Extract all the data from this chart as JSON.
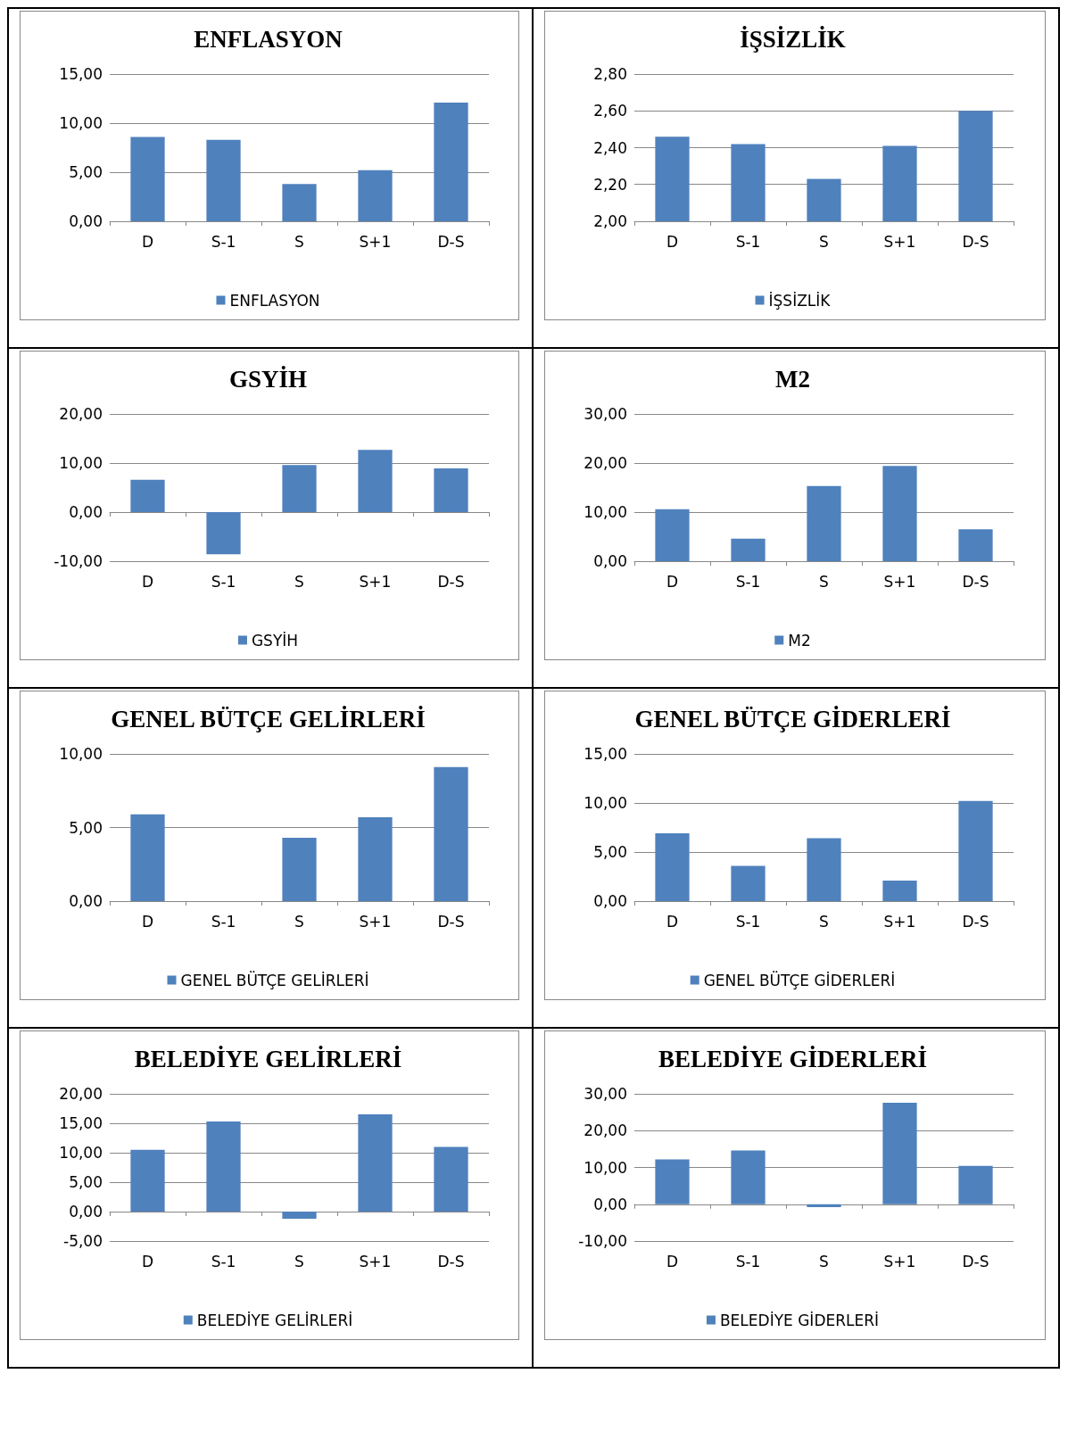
{
  "chart_data": [
    {
      "type": "bar",
      "title": "ENFLASYON",
      "categories": [
        "D",
        "S-1",
        "S",
        "S+1",
        "D-S"
      ],
      "series": [
        {
          "name": "ENFLASYON",
          "color": "#4f81bd",
          "values": [
            8.6,
            8.3,
            3.8,
            5.2,
            12.1
          ]
        }
      ],
      "ylim": [
        0,
        15
      ],
      "yticks": [
        {
          "value": 0,
          "label": "0,00"
        },
        {
          "value": 5,
          "label": "5,00"
        },
        {
          "value": 10,
          "label": "10,00"
        },
        {
          "value": 15,
          "label": "15,00"
        }
      ],
      "grid": "y",
      "legend": "bottom"
    },
    {
      "type": "bar",
      "title": "İŞSİZLİK",
      "categories": [
        "D",
        "S-1",
        "S",
        "S+1",
        "D-S"
      ],
      "series": [
        {
          "name": "İŞSİZLİK",
          "color": "#4f81bd",
          "values": [
            2.46,
            2.42,
            2.23,
            2.41,
            2.6
          ]
        }
      ],
      "ylim": [
        2,
        2.8
      ],
      "yticks": [
        {
          "value": 2,
          "label": "2,00"
        },
        {
          "value": 2.2,
          "label": "2,20"
        },
        {
          "value": 2.4,
          "label": "2,40"
        },
        {
          "value": 2.6,
          "label": "2,60"
        },
        {
          "value": 2.8,
          "label": "2,80"
        }
      ],
      "grid": "y",
      "legend": "bottom"
    },
    {
      "type": "bar",
      "title": "GSYİH",
      "categories": [
        "D",
        "S-1",
        "S",
        "S+1",
        "D-S"
      ],
      "series": [
        {
          "name": "GSYİH",
          "color": "#4f81bd",
          "values": [
            6.6,
            -8.6,
            9.6,
            12.7,
            8.9
          ]
        }
      ],
      "ylim": [
        -10,
        20
      ],
      "yticks": [
        {
          "value": -10,
          "label": "-10,00"
        },
        {
          "value": 0,
          "label": "0,00"
        },
        {
          "value": 10,
          "label": "10,00"
        },
        {
          "value": 20,
          "label": "20,00"
        }
      ],
      "grid": "y",
      "legend": "bottom"
    },
    {
      "type": "bar",
      "title": "M2",
      "categories": [
        "D",
        "S-1",
        "S",
        "S+1",
        "D-S"
      ],
      "series": [
        {
          "name": "M2",
          "color": "#4f81bd",
          "values": [
            10.6,
            4.6,
            15.3,
            19.4,
            6.5
          ]
        }
      ],
      "ylim": [
        0,
        30
      ],
      "yticks": [
        {
          "value": 0,
          "label": "0,00"
        },
        {
          "value": 10,
          "label": "10,00"
        },
        {
          "value": 20,
          "label": "20,00"
        },
        {
          "value": 30,
          "label": "30,00"
        }
      ],
      "grid": "y",
      "legend": "bottom"
    },
    {
      "type": "bar",
      "title": "GENEL BÜTÇE GELİRLERİ",
      "categories": [
        "D",
        "S-1",
        "S",
        "S+1",
        "D-S"
      ],
      "series": [
        {
          "name": "GENEL BÜTÇE GELİRLERİ",
          "color": "#4f81bd",
          "values": [
            5.9,
            0,
            4.3,
            5.7,
            9.1
          ]
        }
      ],
      "ylim": [
        0,
        10
      ],
      "yticks": [
        {
          "value": 0,
          "label": "0,00"
        },
        {
          "value": 5,
          "label": "5,00"
        },
        {
          "value": 10,
          "label": "10,00"
        }
      ],
      "grid": "y",
      "legend": "bottom"
    },
    {
      "type": "bar",
      "title": "GENEL BÜTÇE GİDERLERİ",
      "categories": [
        "D",
        "S-1",
        "S",
        "S+1",
        "D-S"
      ],
      "series": [
        {
          "name": "GENEL BÜTÇE GİDERLERİ",
          "color": "#4f81bd",
          "values": [
            6.9,
            3.6,
            6.4,
            2.1,
            10.2
          ]
        }
      ],
      "ylim": [
        0,
        15
      ],
      "yticks": [
        {
          "value": 0,
          "label": "0,00"
        },
        {
          "value": 5,
          "label": "5,00"
        },
        {
          "value": 10,
          "label": "10,00"
        },
        {
          "value": 15,
          "label": "15,00"
        }
      ],
      "grid": "y",
      "legend": "bottom"
    },
    {
      "type": "bar",
      "title": "BELEDİYE GELİRLERİ",
      "categories": [
        "D",
        "S-1",
        "S",
        "S+1",
        "D-S"
      ],
      "series": [
        {
          "name": "BELEDİYE GELİRLERİ",
          "color": "#4f81bd",
          "values": [
            10.5,
            15.3,
            -1.2,
            16.5,
            11.0
          ]
        }
      ],
      "ylim": [
        -5,
        20
      ],
      "yticks": [
        {
          "value": -5,
          "label": "-5,00"
        },
        {
          "value": 0,
          "label": "0,00"
        },
        {
          "value": 5,
          "label": "5,00"
        },
        {
          "value": 10,
          "label": "10,00"
        },
        {
          "value": 15,
          "label": "15,00"
        },
        {
          "value": 20,
          "label": "20,00"
        }
      ],
      "grid": "y",
      "legend": "bottom"
    },
    {
      "type": "bar",
      "title": "BELEDİYE GİDERLERİ",
      "categories": [
        "D",
        "S-1",
        "S",
        "S+1",
        "D-S"
      ],
      "series": [
        {
          "name": "BELEDİYE GİDERLERİ",
          "color": "#4f81bd",
          "values": [
            12.2,
            14.6,
            -0.8,
            27.6,
            10.4
          ]
        }
      ],
      "ylim": [
        -10,
        30
      ],
      "yticks": [
        {
          "value": -10,
          "label": "-10,00"
        },
        {
          "value": 0,
          "label": "0,00"
        },
        {
          "value": 10,
          "label": "10,00"
        },
        {
          "value": 20,
          "label": "20,00"
        },
        {
          "value": 30,
          "label": "30,00"
        }
      ],
      "grid": "y",
      "legend": "bottom"
    }
  ]
}
